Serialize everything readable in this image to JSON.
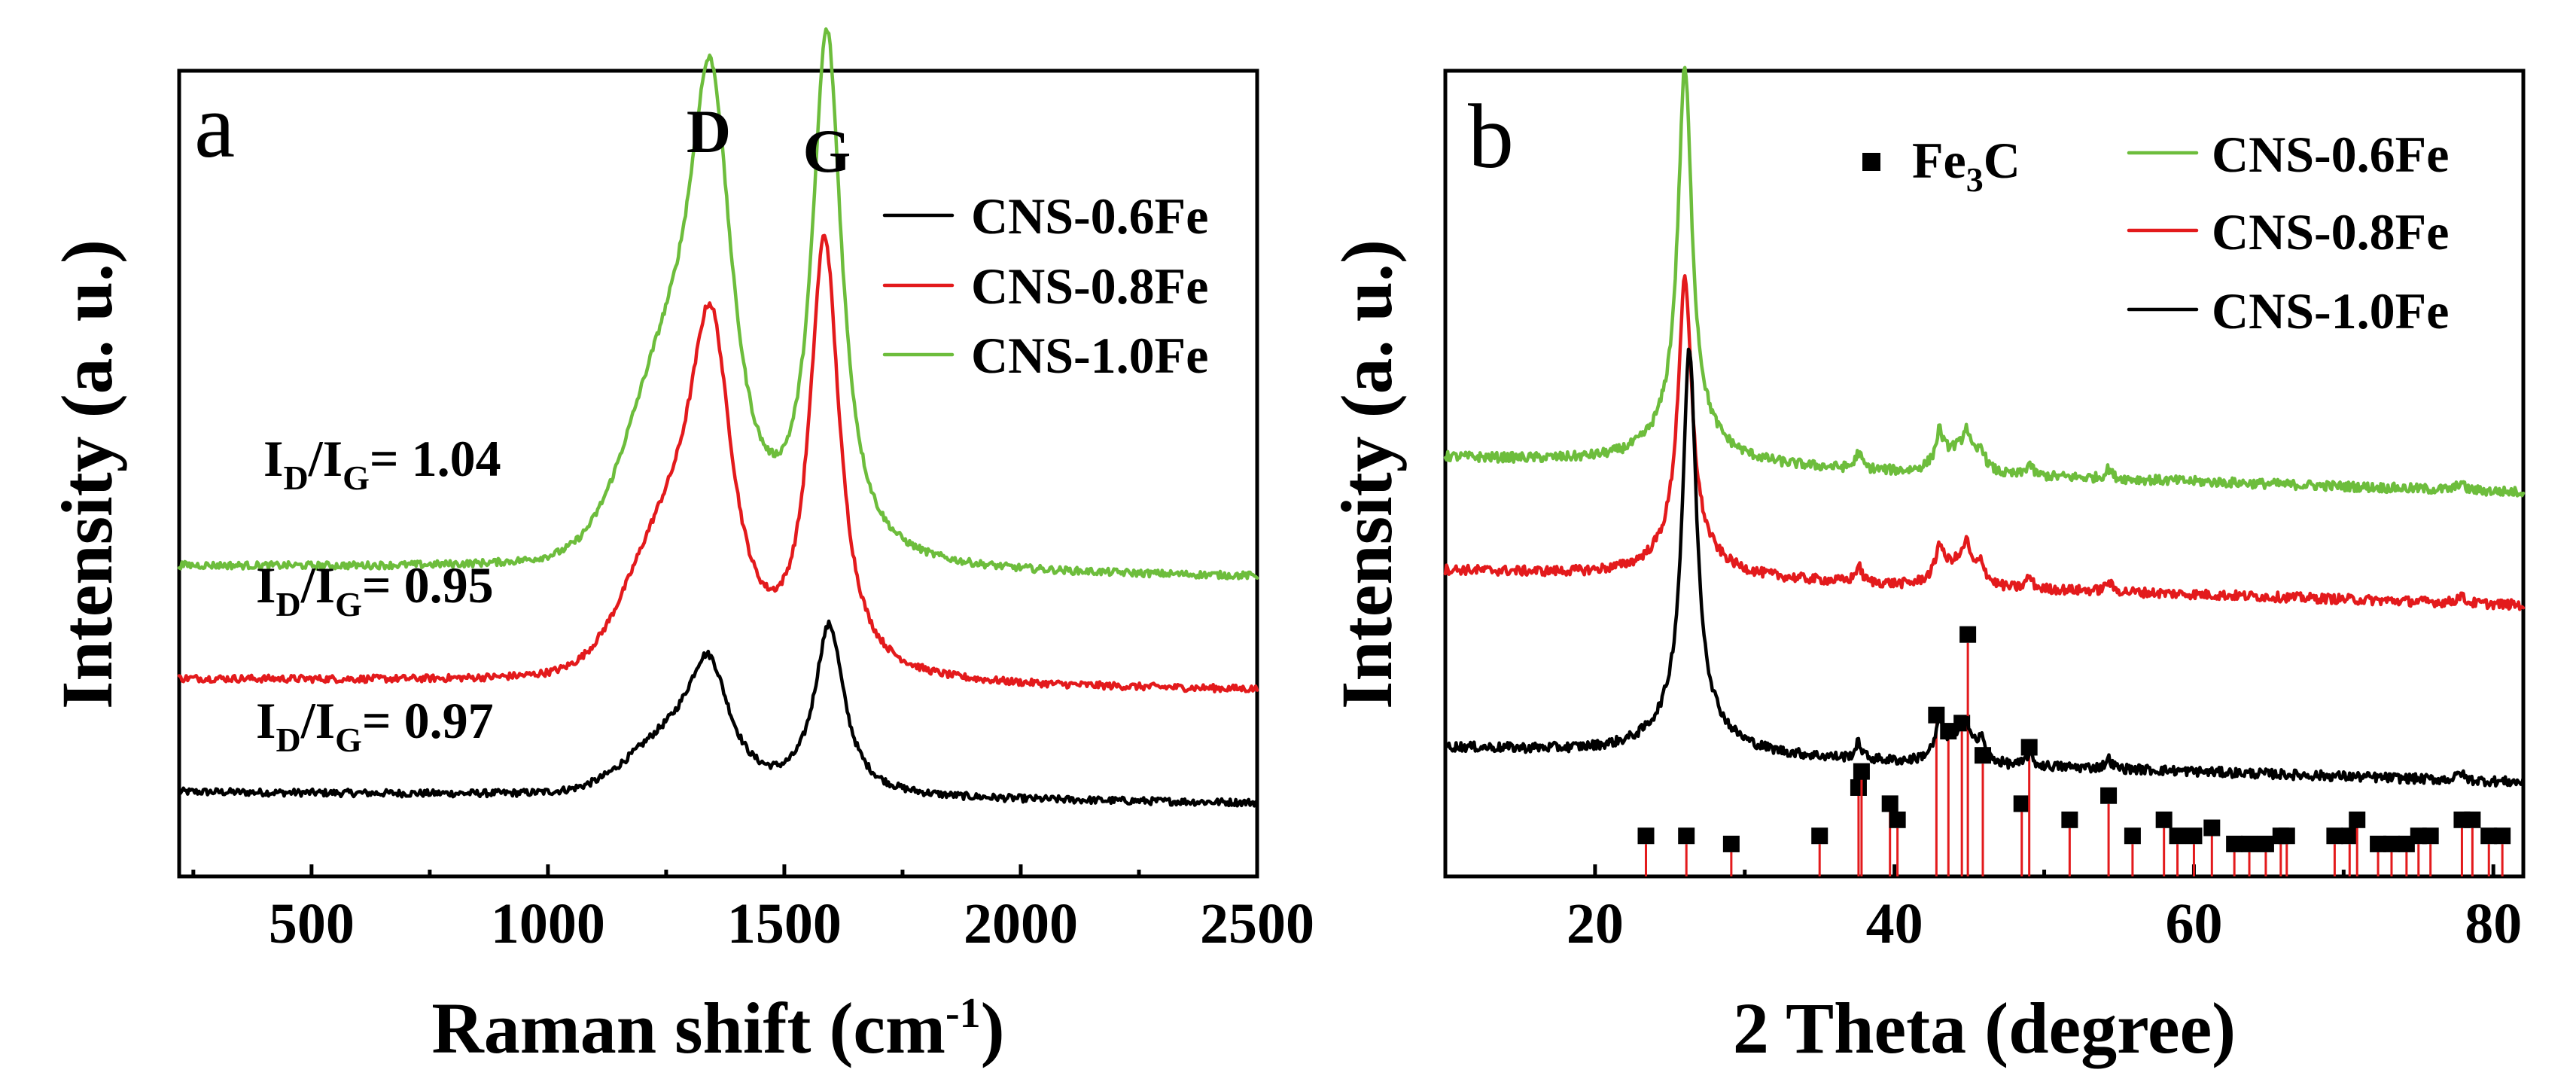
{
  "chart_data": [
    {
      "panel": "a",
      "type": "line",
      "title": "",
      "xlabel": "Raman shift (cm",
      "xlabel_sup": "-1",
      "xlabel_close": ")",
      "ylabel": "Intensity (a. u.)",
      "xlim": [
        220,
        2500
      ],
      "ylim": [
        0,
        1
      ],
      "xticks": [
        500,
        1000,
        1500,
        2000,
        2500
      ],
      "yticks_shown": false,
      "legend_position": "top-right",
      "peak_labels": [
        {
          "text": "D",
          "x": 1340
        },
        {
          "text": "G",
          "x": 1590
        }
      ],
      "series": [
        {
          "name": "CNS-0.6Fe",
          "color": "#000000",
          "baseline": 0.1,
          "d_peak": [
            1340,
            0.19
          ],
          "g_peak": [
            1595,
            0.21
          ],
          "ratio": {
            "prefix": "I",
            "sub1": "D",
            "slash": "/I",
            "sub2": "G",
            "value": "= 0.97"
          }
        },
        {
          "name": "CNS-0.8Fe",
          "color": "#e31a1c",
          "baseline": 0.24,
          "d_peak": [
            1345,
            0.51
          ],
          "g_peak": [
            1585,
            0.54
          ],
          "ratio": {
            "prefix": "I",
            "sub1": "D",
            "slash": "/I",
            "sub2": "G",
            "value": "= 0.95"
          }
        },
        {
          "name": "CNS-1.0Fe",
          "color": "#6dbd3c",
          "baseline": 0.38,
          "d_peak": [
            1345,
            0.69
          ],
          "g_peak": [
            1590,
            0.65
          ],
          "ratio": {
            "prefix": "I",
            "sub1": "D",
            "slash": "/I",
            "sub2": "G",
            "value": "= 1.04"
          }
        }
      ]
    },
    {
      "panel": "b",
      "type": "line",
      "title": "",
      "xlabel": "2 Theta (degree)",
      "ylabel": "Intensity (a. u.)",
      "xlim": [
        10,
        82
      ],
      "ylim": [
        0,
        1
      ],
      "xticks": [
        20,
        40,
        60,
        80
      ],
      "yticks_shown": false,
      "legend_position": "top-right",
      "marker_legend": {
        "symbol": "square",
        "label_main": "Fe",
        "label_sub": "3",
        "label_end": "C"
      },
      "series": [
        {
          "name": "CNS-0.6Fe",
          "color": "#6dbd3c",
          "offset": 0.52,
          "main_peak": [
            26.0,
            0.44
          ]
        },
        {
          "name": "CNS-0.8Fe",
          "color": "#e31a1c",
          "offset": 0.38,
          "main_peak": [
            26.0,
            0.33
          ]
        },
        {
          "name": "CNS-1.0Fe",
          "color": "#000000",
          "offset": 0.16,
          "main_peak": [
            26.3,
            0.45
          ]
        }
      ],
      "reference_Fe3C": {
        "two_theta": [
          23.4,
          26.1,
          29.1,
          35.0,
          37.6,
          37.8,
          39.7,
          40.2,
          42.8,
          43.6,
          44.5,
          44.9,
          45.9,
          48.5,
          49.0,
          51.7,
          54.3,
          55.9,
          58.0,
          58.9,
          60.0,
          61.2,
          62.7,
          63.7,
          64.8,
          65.8,
          66.2,
          69.4,
          70.4,
          70.9,
          72.3,
          73.2,
          74.2,
          75.0,
          75.8,
          77.9,
          78.6,
          79.7,
          80.6
        ],
        "intensity": [
          0.04,
          0.04,
          0.03,
          0.04,
          0.1,
          0.12,
          0.08,
          0.06,
          0.19,
          0.17,
          0.18,
          0.29,
          0.14,
          0.08,
          0.15,
          0.06,
          0.09,
          0.04,
          0.06,
          0.04,
          0.04,
          0.05,
          0.03,
          0.03,
          0.03,
          0.04,
          0.04,
          0.04,
          0.04,
          0.06,
          0.03,
          0.03,
          0.03,
          0.04,
          0.04,
          0.06,
          0.06,
          0.04,
          0.04
        ]
      }
    }
  ]
}
